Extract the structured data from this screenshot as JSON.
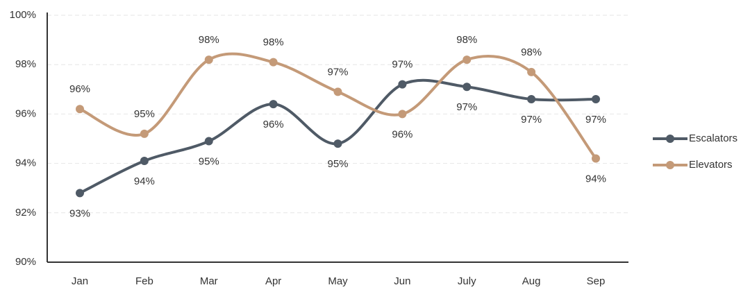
{
  "chart_data": {
    "type": "line",
    "categories": [
      "Jan",
      "Feb",
      "Mar",
      "Apr",
      "May",
      "Jun",
      "July",
      "Aug",
      "Sep"
    ],
    "series": [
      {
        "name": "Escalators",
        "color": "#4f5a66",
        "values": [
          92.8,
          94.1,
          94.9,
          96.4,
          94.8,
          97.2,
          97.1,
          96.6,
          96.6
        ],
        "value_labels": [
          "93%",
          "94%",
          "95%",
          "96%",
          "95%",
          "97%",
          "97%",
          "97%",
          "97%"
        ]
      },
      {
        "name": "Elevators",
        "color": "#c49a78",
        "values": [
          96.2,
          95.2,
          98.2,
          98.1,
          96.9,
          96.0,
          98.2,
          97.7,
          94.2
        ],
        "value_labels": [
          "96%",
          "95%",
          "98%",
          "98%",
          "97%",
          "96%",
          "98%",
          "98%",
          "94%"
        ]
      }
    ],
    "ylim": [
      90,
      100
    ],
    "yticks": [
      {
        "value": 90,
        "label": "90%"
      },
      {
        "value": 92,
        "label": "92%"
      },
      {
        "value": 94,
        "label": "94%"
      },
      {
        "value": 96,
        "label": "96%"
      },
      {
        "value": 98,
        "label": "98%"
      },
      {
        "value": 100,
        "label": "100%"
      }
    ],
    "grid": true,
    "legend": "right"
  }
}
